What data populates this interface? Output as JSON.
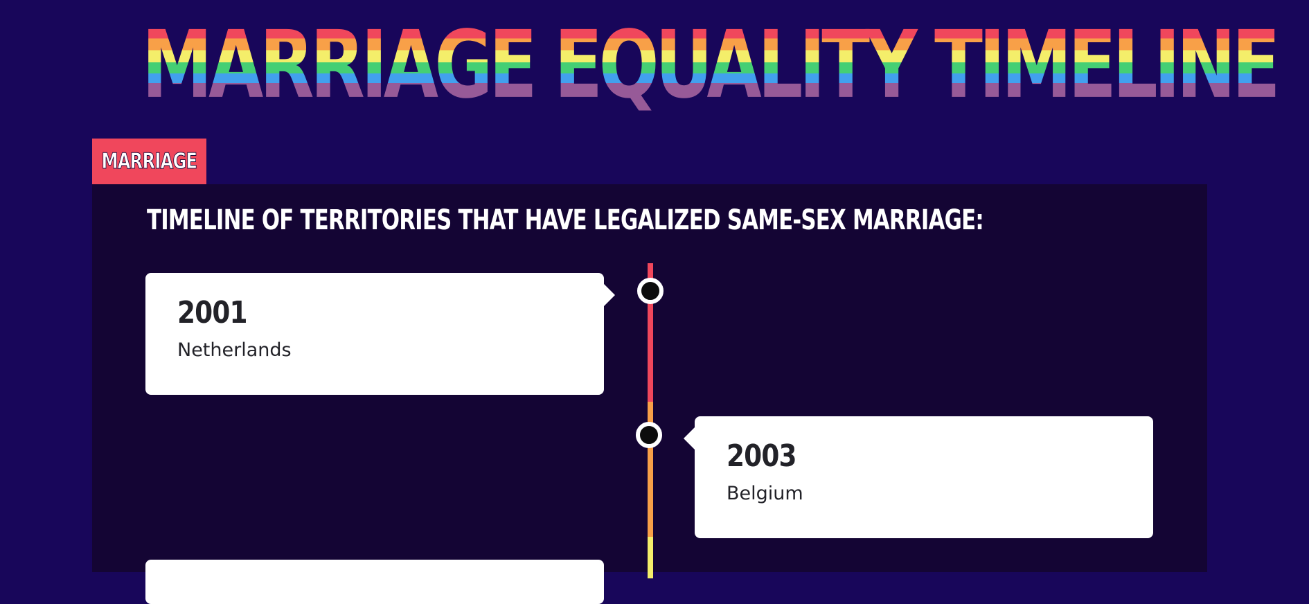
{
  "header": {
    "title": "MARRIAGE EQUALITY TIMELINE"
  },
  "section": {
    "tag": "MARRIAGE",
    "subtitle": "TIMELINE OF TERRITORIES THAT HAVE LEGALIZED SAME-SEX MARRIAGE:"
  },
  "timeline": {
    "entries": [
      {
        "year": "2001",
        "country": "Netherlands",
        "side": "left"
      },
      {
        "year": "2003",
        "country": "Belgium",
        "side": "right"
      }
    ]
  },
  "colors": {
    "background": "#18065a",
    "panel": "#140534",
    "tag": "#f0475c",
    "rainbow": [
      "#f0475c",
      "#f8a048",
      "#f4ee6a",
      "#45cf74",
      "#42a0ee",
      "#975a98"
    ]
  }
}
